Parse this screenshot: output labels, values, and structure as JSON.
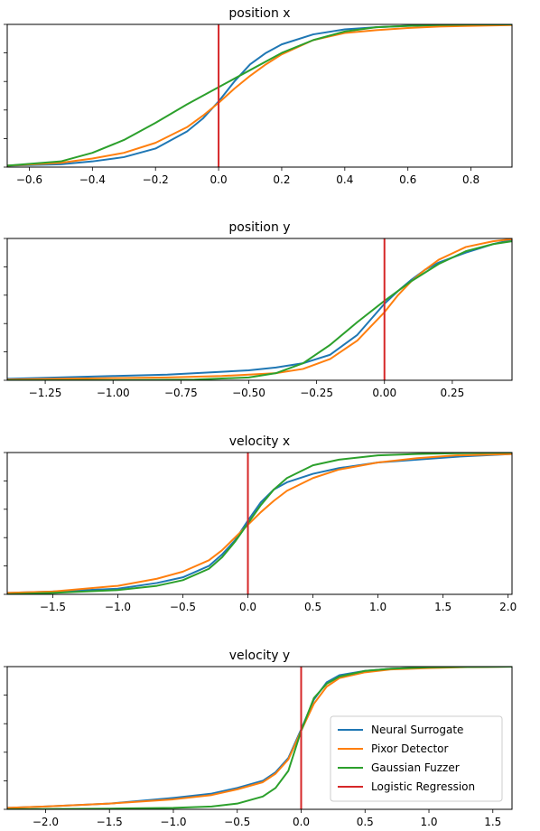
{
  "chart_data": [
    {
      "type": "line",
      "title": "position x",
      "xlim": [
        -0.67,
        0.93
      ],
      "ylim": [
        0,
        1
      ],
      "xticks": [
        -0.6,
        -0.4,
        -0.2,
        0.0,
        0.2,
        0.4,
        0.6,
        0.8
      ],
      "xtick_labels": [
        "−0.6",
        "−0.4",
        "−0.2",
        "0.0",
        "0.2",
        "0.4",
        "0.6",
        "0.8"
      ],
      "vline": 0.0,
      "series": [
        {
          "name": "Neural Surrogate",
          "color": "#1f77b4",
          "x": [
            -0.67,
            -0.5,
            -0.4,
            -0.3,
            -0.2,
            -0.1,
            -0.05,
            0.0,
            0.05,
            0.1,
            0.15,
            0.2,
            0.3,
            0.4,
            0.5,
            0.6,
            0.7,
            0.8,
            0.93
          ],
          "y": [
            0.01,
            0.02,
            0.04,
            0.07,
            0.13,
            0.25,
            0.34,
            0.46,
            0.6,
            0.72,
            0.8,
            0.86,
            0.93,
            0.965,
            0.98,
            0.99,
            0.995,
            0.998,
            1.0
          ]
        },
        {
          "name": "Pixor Detector",
          "color": "#ff7f0e",
          "x": [
            -0.67,
            -0.5,
            -0.4,
            -0.3,
            -0.2,
            -0.1,
            -0.05,
            0.0,
            0.05,
            0.1,
            0.15,
            0.2,
            0.3,
            0.4,
            0.5,
            0.6,
            0.7,
            0.8,
            0.93
          ],
          "y": [
            0.01,
            0.03,
            0.06,
            0.1,
            0.17,
            0.28,
            0.36,
            0.45,
            0.55,
            0.64,
            0.72,
            0.79,
            0.89,
            0.94,
            0.96,
            0.975,
            0.985,
            0.99,
            0.995
          ]
        },
        {
          "name": "Gaussian Fuzzer",
          "color": "#2ca02c",
          "x": [
            -0.67,
            -0.5,
            -0.4,
            -0.3,
            -0.2,
            -0.1,
            0.0,
            0.1,
            0.2,
            0.3,
            0.4,
            0.5,
            0.6,
            0.7,
            0.8,
            0.93
          ],
          "y": [
            0.01,
            0.04,
            0.1,
            0.19,
            0.31,
            0.44,
            0.56,
            0.68,
            0.8,
            0.89,
            0.95,
            0.98,
            0.99,
            0.996,
            0.999,
            1.0
          ]
        }
      ]
    },
    {
      "type": "line",
      "title": "position y",
      "xlim": [
        -1.39,
        0.47
      ],
      "ylim": [
        0,
        1
      ],
      "xticks": [
        -1.25,
        -1.0,
        -0.75,
        -0.5,
        -0.25,
        0.0,
        0.25
      ],
      "xtick_labels": [
        "−1.25",
        "−1.00",
        "−0.75",
        "−0.50",
        "−0.25",
        "0.00",
        "0.25"
      ],
      "vline": 0.0,
      "series": [
        {
          "name": "Neural Surrogate",
          "color": "#1f77b4",
          "x": [
            -1.39,
            -1.2,
            -1.0,
            -0.8,
            -0.6,
            -0.5,
            -0.4,
            -0.3,
            -0.2,
            -0.1,
            -0.05,
            0.0,
            0.05,
            0.1,
            0.15,
            0.2,
            0.3,
            0.4,
            0.47
          ],
          "y": [
            0.01,
            0.02,
            0.03,
            0.04,
            0.06,
            0.07,
            0.09,
            0.12,
            0.18,
            0.32,
            0.43,
            0.54,
            0.63,
            0.71,
            0.78,
            0.83,
            0.9,
            0.96,
            0.99
          ]
        },
        {
          "name": "Pixor Detector",
          "color": "#ff7f0e",
          "x": [
            -1.39,
            -1.2,
            -1.0,
            -0.8,
            -0.6,
            -0.5,
            -0.4,
            -0.3,
            -0.2,
            -0.1,
            -0.05,
            0.0,
            0.05,
            0.1,
            0.15,
            0.2,
            0.3,
            0.4,
            0.47
          ],
          "y": [
            0.005,
            0.01,
            0.015,
            0.02,
            0.03,
            0.04,
            0.05,
            0.08,
            0.15,
            0.28,
            0.38,
            0.48,
            0.6,
            0.7,
            0.78,
            0.85,
            0.94,
            0.98,
            0.995
          ]
        },
        {
          "name": "Gaussian Fuzzer",
          "color": "#2ca02c",
          "x": [
            -1.39,
            -1.0,
            -0.7,
            -0.5,
            -0.4,
            -0.3,
            -0.2,
            -0.1,
            0.0,
            0.1,
            0.2,
            0.3,
            0.4,
            0.47
          ],
          "y": [
            0.0,
            0.0,
            0.005,
            0.02,
            0.05,
            0.12,
            0.25,
            0.41,
            0.56,
            0.7,
            0.82,
            0.91,
            0.96,
            0.98
          ]
        }
      ]
    },
    {
      "type": "line",
      "title": "velocity x",
      "xlim": [
        -1.85,
        2.03
      ],
      "ylim": [
        0,
        1
      ],
      "xticks": [
        -1.5,
        -1.0,
        -0.5,
        0.0,
        0.5,
        1.0,
        1.5,
        2.0
      ],
      "xtick_labels": [
        "−1.5",
        "−1.0",
        "−0.5",
        "0.0",
        "0.5",
        "1.0",
        "1.5",
        "2.0"
      ],
      "vline": 0.0,
      "series": [
        {
          "name": "Neural Surrogate",
          "color": "#1f77b4",
          "x": [
            -1.85,
            -1.5,
            -1.0,
            -0.7,
            -0.5,
            -0.3,
            -0.2,
            -0.1,
            0.0,
            0.1,
            0.2,
            0.3,
            0.5,
            0.7,
            1.0,
            1.3,
            1.6,
            2.03
          ],
          "y": [
            0.01,
            0.02,
            0.04,
            0.08,
            0.12,
            0.2,
            0.28,
            0.38,
            0.52,
            0.65,
            0.74,
            0.79,
            0.85,
            0.89,
            0.93,
            0.95,
            0.97,
            0.99
          ]
        },
        {
          "name": "Pixor Detector",
          "color": "#ff7f0e",
          "x": [
            -1.85,
            -1.5,
            -1.0,
            -0.7,
            -0.5,
            -0.3,
            -0.2,
            -0.1,
            0.0,
            0.1,
            0.2,
            0.3,
            0.5,
            0.7,
            1.0,
            1.3,
            1.6,
            2.03
          ],
          "y": [
            0.01,
            0.02,
            0.06,
            0.11,
            0.16,
            0.24,
            0.31,
            0.4,
            0.49,
            0.58,
            0.66,
            0.73,
            0.82,
            0.88,
            0.93,
            0.96,
            0.98,
            0.99
          ]
        },
        {
          "name": "Gaussian Fuzzer",
          "color": "#2ca02c",
          "x": [
            -1.85,
            -1.5,
            -1.0,
            -0.7,
            -0.5,
            -0.3,
            -0.2,
            -0.1,
            0.0,
            0.1,
            0.2,
            0.3,
            0.5,
            0.7,
            1.0,
            1.3,
            1.6,
            2.03
          ],
          "y": [
            0.0,
            0.01,
            0.03,
            0.06,
            0.1,
            0.18,
            0.26,
            0.37,
            0.5,
            0.63,
            0.74,
            0.82,
            0.91,
            0.95,
            0.98,
            0.99,
            0.995,
            1.0
          ]
        }
      ]
    },
    {
      "type": "line",
      "title": "velocity y",
      "xlim": [
        -2.3,
        1.65
      ],
      "ylim": [
        0,
        1
      ],
      "xticks": [
        -2.0,
        -1.5,
        -1.0,
        -0.5,
        0.0,
        0.5,
        1.0,
        1.5
      ],
      "xtick_labels": [
        "−2.0",
        "−1.5",
        "−1.0",
        "−0.5",
        "0.0",
        "0.5",
        "1.0",
        "1.5"
      ],
      "vline": 0.0,
      "legend": "lower-right",
      "series": [
        {
          "name": "Neural Surrogate",
          "color": "#1f77b4",
          "x": [
            -2.3,
            -2.0,
            -1.5,
            -1.0,
            -0.7,
            -0.5,
            -0.3,
            -0.2,
            -0.1,
            0.0,
            0.1,
            0.2,
            0.3,
            0.5,
            0.7,
            1.0,
            1.3,
            1.65
          ],
          "y": [
            0.01,
            0.02,
            0.04,
            0.08,
            0.11,
            0.15,
            0.2,
            0.26,
            0.36,
            0.56,
            0.77,
            0.89,
            0.94,
            0.97,
            0.985,
            0.995,
            0.998,
            1.0
          ]
        },
        {
          "name": "Pixor Detector",
          "color": "#ff7f0e",
          "x": [
            -2.3,
            -2.0,
            -1.5,
            -1.0,
            -0.7,
            -0.5,
            -0.3,
            -0.2,
            -0.1,
            0.0,
            0.1,
            0.2,
            0.3,
            0.5,
            0.7,
            1.0,
            1.3,
            1.65
          ],
          "y": [
            0.01,
            0.02,
            0.04,
            0.07,
            0.1,
            0.14,
            0.19,
            0.25,
            0.35,
            0.55,
            0.74,
            0.86,
            0.92,
            0.96,
            0.98,
            0.99,
            0.997,
            1.0
          ]
        },
        {
          "name": "Gaussian Fuzzer",
          "color": "#2ca02c",
          "x": [
            -2.3,
            -1.5,
            -1.0,
            -0.7,
            -0.5,
            -0.3,
            -0.2,
            -0.1,
            0.0,
            0.1,
            0.2,
            0.3,
            0.5,
            0.7,
            1.0,
            1.3,
            1.65
          ],
          "y": [
            0.0,
            0.005,
            0.01,
            0.02,
            0.04,
            0.09,
            0.15,
            0.27,
            0.55,
            0.78,
            0.88,
            0.93,
            0.97,
            0.985,
            0.995,
            0.998,
            1.0
          ]
        }
      ]
    }
  ],
  "legend": {
    "items": [
      {
        "label": "Neural Surrogate",
        "color": "#1f77b4"
      },
      {
        "label": "Pixor Detector",
        "color": "#ff7f0e"
      },
      {
        "label": "Gaussian Fuzzer",
        "color": "#2ca02c"
      },
      {
        "label": "Logistic Regression",
        "color": "#d62728"
      }
    ]
  },
  "vline_color": "#d62728"
}
